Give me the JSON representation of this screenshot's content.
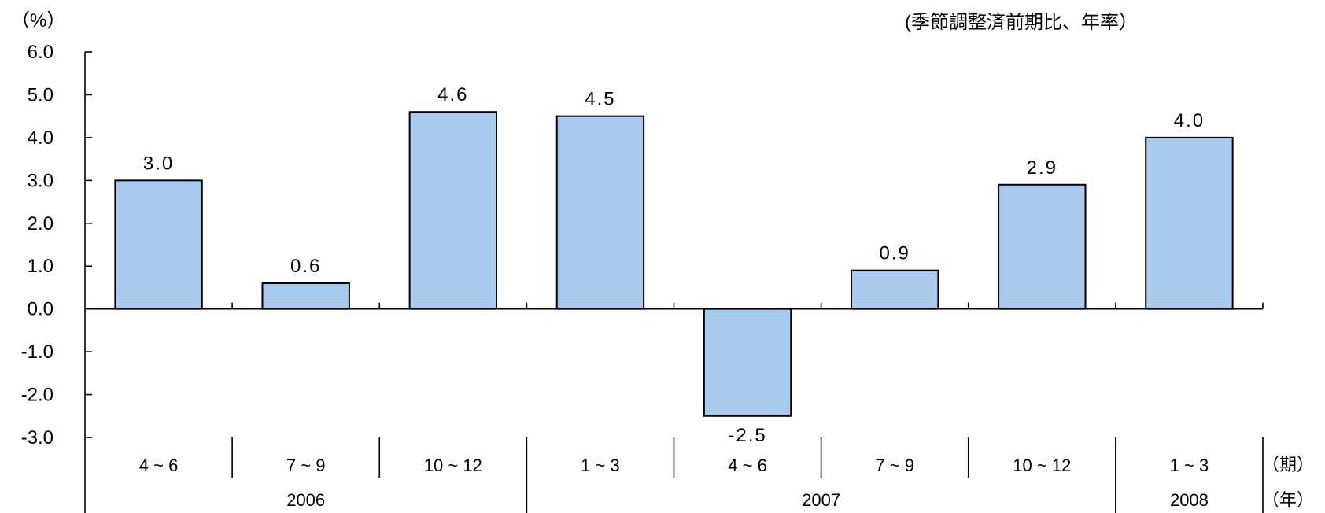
{
  "header": {
    "unit_label": "（%）",
    "note": "(季節調整済前期比、年率）"
  },
  "axis_labels": {
    "period": "（期）",
    "year": "（年）"
  },
  "chart_data": {
    "type": "bar",
    "categories": [
      "4 ~ 6",
      "7 ~ 9",
      "10 ~ 12",
      "1 ~ 3",
      "4 ~ 6",
      "7 ~ 9",
      "10 ~ 12",
      "1 ~ 3"
    ],
    "years": [
      {
        "label": "2006",
        "span": [
          0,
          2
        ]
      },
      {
        "label": "2007",
        "span": [
          3,
          6
        ]
      },
      {
        "label": "2008",
        "span": [
          7,
          7
        ]
      }
    ],
    "values": [
      3.0,
      0.6,
      4.6,
      4.5,
      -2.5,
      0.9,
      2.9,
      4.0
    ],
    "value_labels": [
      "3.0",
      "0.6",
      "4.6",
      "4.5",
      "-2.5",
      "0.9",
      "2.9",
      "4.0"
    ],
    "yticks": [
      "6.0",
      "5.0",
      "4.0",
      "3.0",
      "2.0",
      "1.0",
      "0.0",
      "-1.0",
      "-2.0",
      "-3.0"
    ],
    "ylim": [
      -3.0,
      6.0
    ],
    "bar_color": "#a9caef",
    "bar_edge_color": "#000000",
    "grid": false,
    "legend": "none"
  }
}
